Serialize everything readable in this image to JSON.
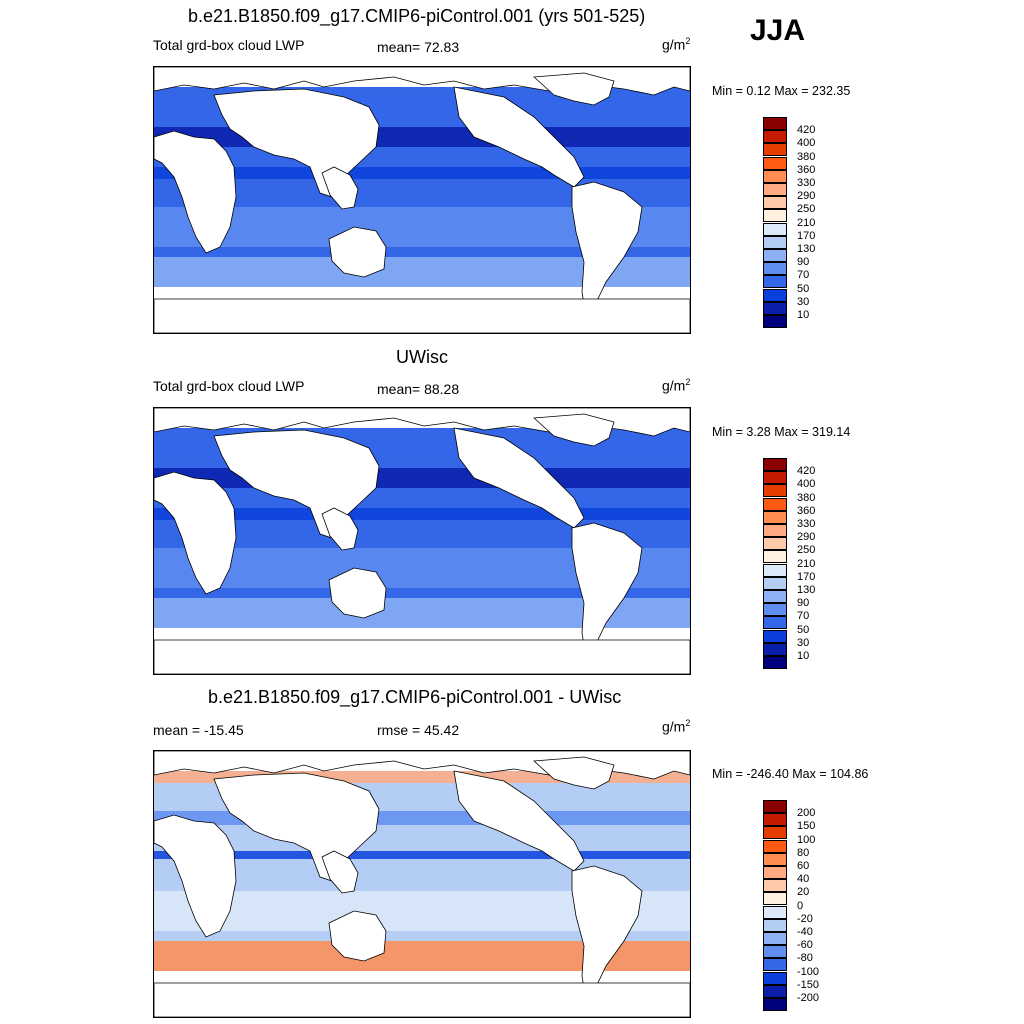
{
  "season": "JJA",
  "unit_base": "g/m",
  "unit_exp": "2",
  "panels": [
    {
      "title": "b.e21.B1850.f09_g17.CMIP6-piControl.001 (yrs 501-525)",
      "left_label": "Total grd-box cloud LWP",
      "center_label": "mean=  72.83",
      "minmax": "Min =   0.12 Max = 232.35",
      "levels": [
        "420",
        "400",
        "380",
        "360",
        "330",
        "290",
        "250",
        "210",
        "170",
        "130",
        "90",
        "70",
        "50",
        "30",
        "10"
      ],
      "colors": [
        "#8b0000",
        "#c41a00",
        "#e53c00",
        "#ff5a14",
        "#ff8c50",
        "#ffaa80",
        "#ffcaaa",
        "#fff0e0",
        "#dce9f8",
        "#b4cdf5",
        "#8cb1f5",
        "#5f8ef0",
        "#3466e8",
        "#0a3fdc",
        "#0a1eaa",
        "#00007d"
      ],
      "ocean_color": "#3466e8"
    },
    {
      "title": "UWisc",
      "left_label": "Total grd-box cloud LWP",
      "center_label": "mean=  88.28",
      "minmax": "Min =   3.28 Max = 319.14",
      "levels": [
        "420",
        "400",
        "380",
        "360",
        "330",
        "290",
        "250",
        "210",
        "170",
        "130",
        "90",
        "70",
        "50",
        "30",
        "10"
      ],
      "colors": [
        "#8b0000",
        "#c41a00",
        "#e53c00",
        "#ff5a14",
        "#ff8c50",
        "#ffaa80",
        "#ffcaaa",
        "#fff0e0",
        "#dce9f8",
        "#b4cdf5",
        "#8cb1f5",
        "#5f8ef0",
        "#3466e8",
        "#0a3fdc",
        "#0a1eaa",
        "#00007d"
      ],
      "ocean_color": "#3466e8"
    },
    {
      "title": "b.e21.B1850.f09_g17.CMIP6-piControl.001 - UWisc",
      "left_label": "mean = -15.45",
      "center_label": "rmse =  45.42",
      "minmax": "Min = -246.40 Max = 104.86",
      "levels": [
        "200",
        "150",
        "100",
        "80",
        "60",
        "40",
        "20",
        "0",
        "-20",
        "-40",
        "-60",
        "-80",
        "-100",
        "-150",
        "-200"
      ],
      "colors": [
        "#8b0000",
        "#c41a00",
        "#e53c00",
        "#ff5a14",
        "#ff8c50",
        "#ffaa80",
        "#ffcaaa",
        "#fff0e0",
        "#dce9f8",
        "#b4cdf5",
        "#8cb1f5",
        "#5f8ef0",
        "#3466e8",
        "#0a3fdc",
        "#0a1eaa",
        "#00007d"
      ],
      "ocean_color": "#b4cdf5"
    }
  ]
}
